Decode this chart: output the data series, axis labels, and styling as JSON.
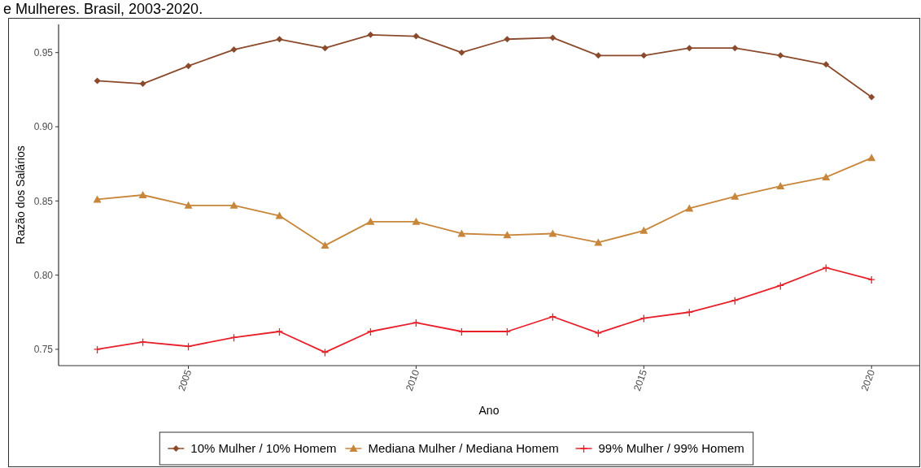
{
  "chart_data": {
    "type": "line",
    "title": "e Mulheres. Brasil, 2003-2020.",
    "xlabel": "Ano",
    "ylabel": "Razão dos Salários",
    "x": [
      2003,
      2004,
      2005,
      2006,
      2007,
      2008,
      2009,
      2010,
      2011,
      2012,
      2013,
      2014,
      2015,
      2016,
      2017,
      2018,
      2019,
      2020
    ],
    "xlim": [
      2002.15,
      2021.05
    ],
    "xticks": [
      2005,
      2010,
      2015,
      2020
    ],
    "ylim": [
      0.739,
      0.969
    ],
    "yticks": [
      {
        "value": 0.75,
        "label": "0.75"
      },
      {
        "value": 0.8,
        "label": "0.80"
      },
      {
        "value": 0.85,
        "label": "0.85"
      },
      {
        "value": 0.9,
        "label": "0.90"
      },
      {
        "value": 0.95,
        "label": "0.95"
      }
    ],
    "grid": false,
    "legend": "bottom",
    "line_style": "solid",
    "series": [
      {
        "name": "10% Mulher / 10% Homem",
        "color": "#8b4a2b",
        "marker": "diamond",
        "values": [
          0.931,
          0.929,
          0.941,
          0.952,
          0.959,
          0.953,
          0.962,
          0.961,
          0.95,
          0.959,
          0.96,
          0.948,
          0.948,
          0.953,
          0.953,
          0.948,
          0.942,
          0.92
        ]
      },
      {
        "name": "Mediana Mulher / Mediana Homem",
        "color": "#c8863a",
        "marker": "triangle",
        "values": [
          0.851,
          0.854,
          0.847,
          0.847,
          0.84,
          0.82,
          0.836,
          0.836,
          0.828,
          0.827,
          0.828,
          0.822,
          0.83,
          0.845,
          0.853,
          0.86,
          0.866,
          0.879
        ]
      },
      {
        "name": "99% Mulher / 99% Homem",
        "color": "#e8202a",
        "marker": "cross",
        "values": [
          0.75,
          0.755,
          0.752,
          0.758,
          0.762,
          0.748,
          0.762,
          0.768,
          0.762,
          0.762,
          0.772,
          0.761,
          0.771,
          0.775,
          0.783,
          0.793,
          0.805,
          0.797
        ]
      }
    ]
  }
}
